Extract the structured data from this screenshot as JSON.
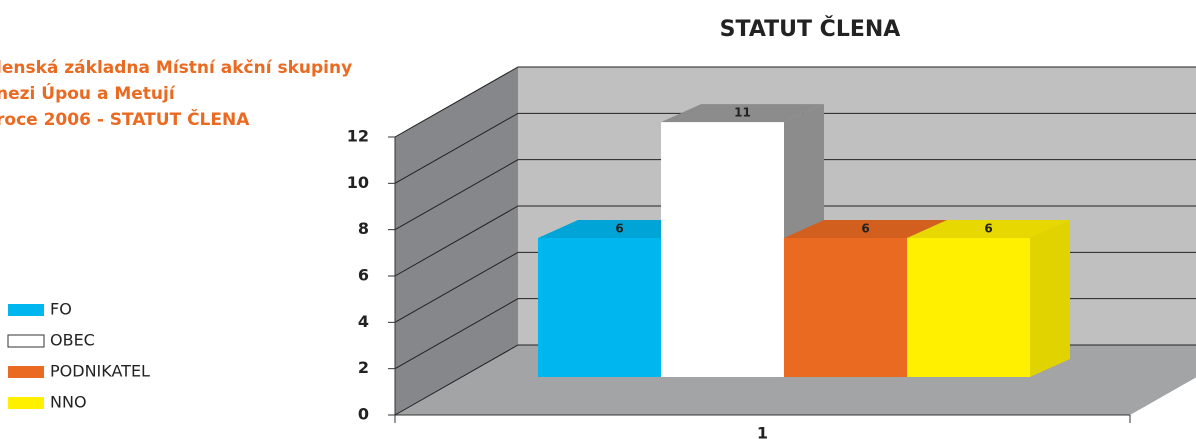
{
  "chart_data": {
    "type": "bar",
    "title": "STATUT ČLENA",
    "annotation": [
      "lenská základna Místní akční skupiny",
      "nezi Úpou a Metují",
      "roce 2006 - STATUT ČLENA"
    ],
    "categories": [
      "1"
    ],
    "series": [
      {
        "name": "FO",
        "color": "#00b6ef",
        "values": [
          6
        ]
      },
      {
        "name": "OBEC",
        "color": "#ffffff",
        "values": [
          11
        ]
      },
      {
        "name": "PODNIKATEL",
        "color": "#ea6a22",
        "values": [
          6
        ]
      },
      {
        "name": "NNO",
        "color": "#fff000",
        "values": [
          6
        ]
      }
    ],
    "ylim": [
      0,
      12
    ],
    "yticks": [
      0,
      2,
      4,
      6,
      8,
      10,
      12
    ],
    "grid": true,
    "legend": "left"
  }
}
